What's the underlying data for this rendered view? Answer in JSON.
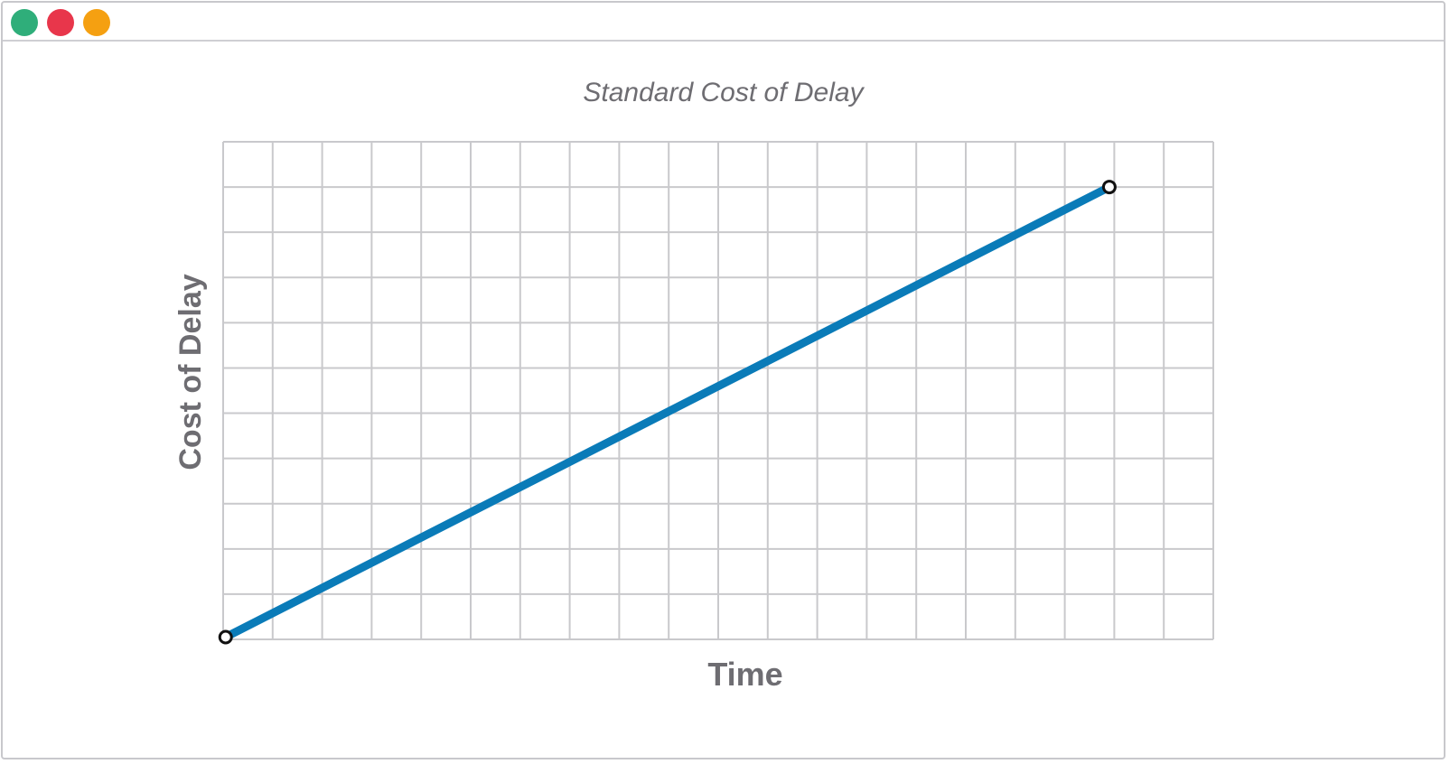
{
  "window": {
    "controls": [
      {
        "name": "close",
        "color": "#2fae7a"
      },
      {
        "name": "minimize",
        "color": "#e8364b"
      },
      {
        "name": "maximize",
        "color": "#f5a011"
      }
    ]
  },
  "chart_data": {
    "type": "line",
    "title": "Standard Cost of Delay",
    "xlabel": "Time",
    "ylabel": "Cost of Delay",
    "xlim": [
      0,
      20
    ],
    "ylim": [
      0,
      11
    ],
    "grid": true,
    "x_gridlines": 20,
    "y_gridlines": 11,
    "series": [
      {
        "name": "",
        "color": "#0a7bb8",
        "x": [
          0.05,
          17.9
        ],
        "y": [
          0.05,
          10.0
        ],
        "markers": "endpoints"
      }
    ]
  }
}
